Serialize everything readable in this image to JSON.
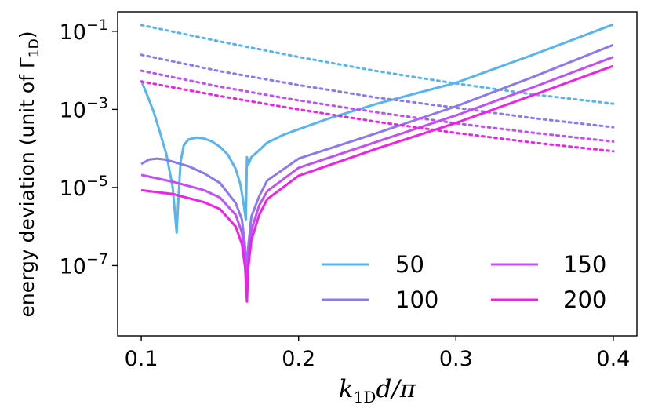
{
  "chart_data": {
    "type": "line",
    "xlabel_parts": {
      "var1": "k",
      "sub": "1D",
      "var2": "d/π"
    },
    "ylabel_parts": {
      "main": "energy deviation (unit of Γ",
      "sub": "1D",
      "close": ")"
    },
    "xlim": [
      0.085,
      0.415
    ],
    "ylim_log10": [
      -8.8,
      -0.5
    ],
    "x_ticks": [
      0.1,
      0.2,
      0.3,
      0.4
    ],
    "x_tick_labels": [
      "0.1",
      "0.2",
      "0.3",
      "0.4"
    ],
    "y_tick_exponents": [
      -1,
      -3,
      -5,
      -7
    ],
    "y_tick_base": "10",
    "y_tick_exps": [
      "−1",
      "−3",
      "−5",
      "−7"
    ],
    "legend": {
      "placement": "lower-right",
      "columns": 2,
      "entries": [
        "50",
        "150",
        "100",
        "200"
      ]
    },
    "series": [
      {
        "name": "50",
        "color": "#56b4f0",
        "solid": {
          "dip_x": 0.123,
          "dip_y": 7e-07,
          "x": [
            0.1,
            0.104,
            0.108,
            0.112,
            0.116,
            0.12,
            0.1225,
            0.1235,
            0.125,
            0.127,
            0.13,
            0.135,
            0.14,
            0.145,
            0.15,
            0.155,
            0.16,
            0.163,
            0.165,
            0.166,
            0.1665,
            0.167,
            0.1672,
            0.168,
            0.17,
            0.175,
            0.18,
            0.19,
            0.2,
            0.22,
            0.25,
            0.3,
            0.35,
            0.4
          ],
          "y": [
            0.0055,
            0.0022,
            0.00085,
            0.00025,
            7e-05,
            1e-05,
            7e-07,
            4e-06,
            4.5e-05,
            0.00012,
            0.00017,
            0.00019,
            0.00018,
            0.00015,
            0.00011,
            7e-05,
            3e-05,
            1.2e-05,
            4e-06,
            2e-06,
            1.5e-06,
            2.5e-05,
            6e-05,
            3.8e-05,
            6e-05,
            9e-05,
            0.00014,
            0.00022,
            0.00031,
            0.0006,
            0.0014,
            0.0048,
            0.026,
            0.15
          ]
        },
        "dotted": {
          "x": [
            0.1,
            0.15,
            0.2,
            0.25,
            0.3,
            0.35,
            0.4
          ],
          "y": [
            0.145,
            0.055,
            0.022,
            0.0095,
            0.0046,
            0.0024,
            0.0014
          ]
        }
      },
      {
        "name": "100",
        "color": "#8c78f0",
        "solid": {
          "x": [
            0.1,
            0.105,
            0.11,
            0.115,
            0.12,
            0.13,
            0.14,
            0.15,
            0.16,
            0.164,
            0.166,
            0.167,
            0.168,
            0.17,
            0.175,
            0.18,
            0.2,
            0.25,
            0.3,
            0.35,
            0.4
          ],
          "y": [
            4e-05,
            5.2e-05,
            5.5e-05,
            5.2e-05,
            4.6e-05,
            3.5e-05,
            2.3e-05,
            1.3e-05,
            4e-06,
            1.5e-06,
            3e-07,
            8e-08,
            3e-07,
            1.8e-06,
            6e-06,
            1.5e-05,
            5.5e-05,
            0.00025,
            0.0012,
            0.007,
            0.045
          ]
        },
        "dotted": {
          "x": [
            0.1,
            0.15,
            0.2,
            0.25,
            0.3,
            0.35,
            0.4
          ],
          "y": [
            0.025,
            0.0095,
            0.0042,
            0.002,
            0.0011,
            0.00059,
            0.00035
          ]
        }
      },
      {
        "name": "150",
        "color": "#c050f5",
        "solid": {
          "x": [
            0.1,
            0.12,
            0.14,
            0.15,
            0.16,
            0.164,
            0.166,
            0.167,
            0.168,
            0.17,
            0.175,
            0.18,
            0.2,
            0.25,
            0.3,
            0.35,
            0.4
          ],
          "y": [
            2.1e-05,
            1.4e-05,
            8.5e-06,
            5.5e-06,
            2e-06,
            7e-07,
            1.5e-07,
            4e-08,
            1.5e-07,
            8e-07,
            3.5e-06,
            8e-06,
            3.2e-05,
            0.00015,
            0.0007,
            0.0038,
            0.022
          ]
        },
        "dotted": {
          "x": [
            0.1,
            0.15,
            0.2,
            0.25,
            0.3,
            0.35,
            0.4
          ],
          "y": [
            0.0098,
            0.0038,
            0.0017,
            0.00084,
            0.00044,
            0.00025,
            0.00015
          ]
        }
      },
      {
        "name": "200",
        "color": "#f020e8",
        "solid": {
          "x": [
            0.1,
            0.12,
            0.14,
            0.15,
            0.16,
            0.164,
            0.166,
            0.1672,
            0.168,
            0.17,
            0.175,
            0.18,
            0.2,
            0.25,
            0.3,
            0.35,
            0.4
          ],
          "y": [
            8.5e-06,
            6.8e-06,
            4.2e-06,
            2.8e-06,
            1e-06,
            3.5e-07,
            9e-08,
            1.2e-08,
            9e-08,
            4.5e-07,
            2e-06,
            5e-06,
            2e-05,
            0.0001,
            0.00045,
            0.0024,
            0.013
          ]
        },
        "dotted": {
          "x": [
            0.1,
            0.15,
            0.2,
            0.25,
            0.3,
            0.35,
            0.4
          ],
          "y": [
            0.0052,
            0.0022,
            0.001,
            0.00048,
            0.00025,
            0.00014,
            8.5e-05
          ]
        }
      }
    ]
  }
}
